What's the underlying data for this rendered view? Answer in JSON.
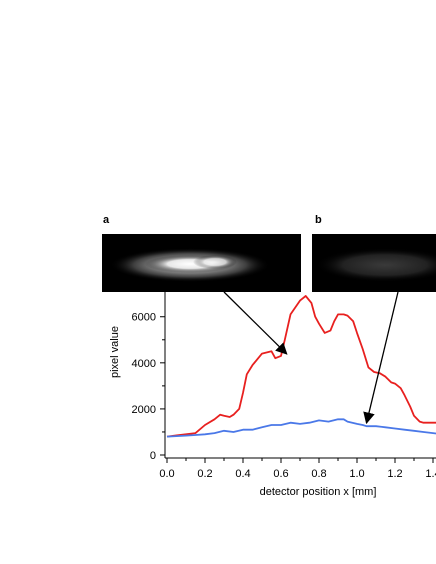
{
  "panels": {
    "a": "a",
    "b": "b"
  },
  "chart_data": {
    "type": "line",
    "xlabel": "detector position x [mm]",
    "ylabel": "pixel value",
    "xlim": [
      0.0,
      1.5
    ],
    "ylim": [
      -100,
      7000
    ],
    "xticks": [
      0.0,
      0.2,
      0.4,
      0.6,
      0.8,
      1.0,
      1.2,
      1.4
    ],
    "xtick_labels": [
      "0.0",
      "0.2",
      "0.4",
      "0.6",
      "0.8",
      "1.0",
      "1.2",
      "1.4"
    ],
    "yticks": [
      0,
      2000,
      4000,
      6000
    ],
    "ytick_labels": [
      "0",
      "2000",
      "4000",
      "6000"
    ],
    "grid": false,
    "series": [
      {
        "color": "#e8201f",
        "x": [
          0.0,
          0.05,
          0.1,
          0.15,
          0.2,
          0.25,
          0.28,
          0.3,
          0.33,
          0.35,
          0.38,
          0.4,
          0.42,
          0.45,
          0.5,
          0.55,
          0.57,
          0.6,
          0.62,
          0.65,
          0.7,
          0.73,
          0.76,
          0.78,
          0.8,
          0.83,
          0.86,
          0.88,
          0.9,
          0.93,
          0.95,
          0.98,
          1.0,
          1.03,
          1.06,
          1.09,
          1.12,
          1.15,
          1.18,
          1.2,
          1.23,
          1.25,
          1.28,
          1.3,
          1.33,
          1.35,
          1.4,
          1.45,
          1.5
        ],
        "y": [
          800,
          850,
          900,
          950,
          1300,
          1550,
          1750,
          1700,
          1650,
          1750,
          2000,
          2700,
          3500,
          3900,
          4400,
          4500,
          4200,
          4300,
          5000,
          6100,
          6700,
          6900,
          6600,
          6000,
          5700,
          5300,
          5400,
          5800,
          6100,
          6100,
          6050,
          5800,
          5300,
          4600,
          3800,
          3600,
          3550,
          3400,
          3150,
          3100,
          2900,
          2600,
          2100,
          1700,
          1450,
          1400,
          1400,
          1400,
          1400
        ]
      },
      {
        "color": "#4a78e8",
        "x": [
          0.0,
          0.05,
          0.1,
          0.15,
          0.2,
          0.25,
          0.3,
          0.35,
          0.4,
          0.45,
          0.5,
          0.55,
          0.6,
          0.65,
          0.7,
          0.75,
          0.8,
          0.85,
          0.9,
          0.93,
          0.95,
          1.0,
          1.03,
          1.05,
          1.1,
          1.15,
          1.2,
          1.25,
          1.3,
          1.35,
          1.4,
          1.45,
          1.5
        ],
        "y": [
          800,
          820,
          840,
          870,
          900,
          950,
          1050,
          1000,
          1100,
          1100,
          1200,
          1300,
          1300,
          1400,
          1350,
          1400,
          1500,
          1450,
          1550,
          1550,
          1450,
          1350,
          1300,
          1250,
          1250,
          1200,
          1150,
          1100,
          1050,
          1000,
          950,
          900,
          900
        ]
      }
    ],
    "annotations": [
      {
        "from_panel": "a",
        "to_series": 0,
        "to_x": 0.63,
        "to_y": 4300
      },
      {
        "from_panel": "b",
        "to_series": 1,
        "to_x": 1.05,
        "to_y": 1300
      }
    ]
  }
}
